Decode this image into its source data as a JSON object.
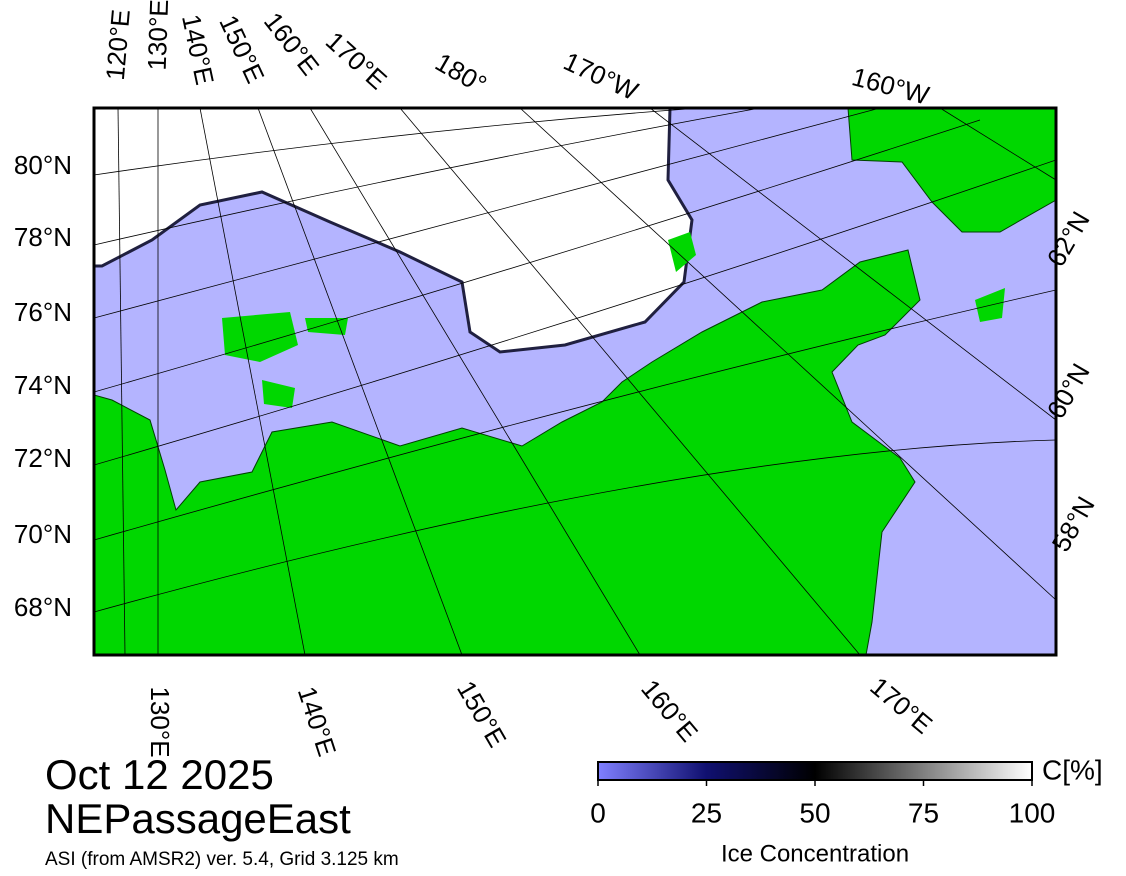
{
  "map": {
    "lat_labels_left": [
      "80°N",
      "78°N",
      "76°N",
      "74°N",
      "72°N",
      "70°N",
      "68°N"
    ],
    "lat_labels_right": [
      "62°N",
      "60°N",
      "58°N"
    ],
    "lon_labels_top": [
      "120°E",
      "130°E",
      "140°E",
      "150°E",
      "160°E",
      "170°E",
      "180°",
      "170°W",
      "160°W"
    ],
    "lon_labels_bottom": [
      "130°E",
      "140°E",
      "150°E",
      "160°E",
      "170°E"
    ]
  },
  "date": "Oct 12 2025",
  "region": "NEPassageEast",
  "source": "ASI (from AMSR2) ver. 5.4,  Grid 3.125 km",
  "colorbar": {
    "range": [
      0,
      100
    ],
    "ticks": [
      0,
      25,
      50,
      75,
      100
    ],
    "unit": "C[%]",
    "label": "Ice Concentration"
  }
}
